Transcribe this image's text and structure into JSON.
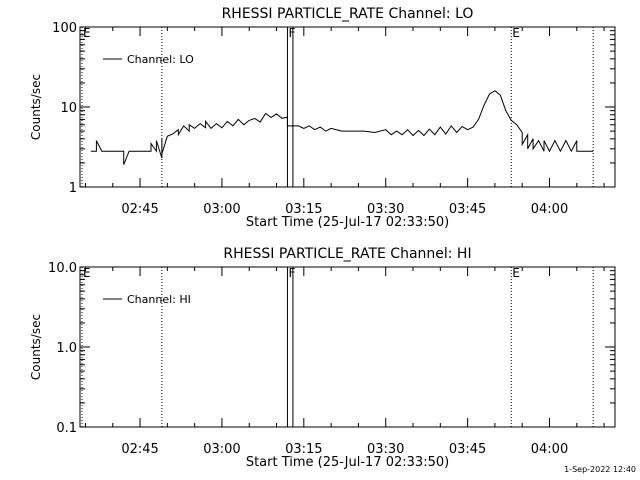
{
  "footer_timestamp": "1-Sep-2022 12:40",
  "chart_data": [
    {
      "type": "line",
      "title": "RHESSI PARTICLE_RATE Channel: LO",
      "xlabel": "Start Time (25-Jul-17 02:33:50)",
      "ylabel": "Counts/sec",
      "y_scale": "log",
      "ylim": [
        1,
        100
      ],
      "xlim": [
        "02:34",
        "04:12"
      ],
      "y_ticks": [
        {
          "value": 1,
          "label": "1"
        },
        {
          "value": 10,
          "label": "10"
        },
        {
          "value": 100,
          "label": "100"
        }
      ],
      "x_ticks": [
        "02:45",
        "03:00",
        "03:15",
        "03:30",
        "03:45",
        "04:00"
      ],
      "legend": {
        "label": "Channel: LO",
        "position": "top-left"
      },
      "event_lines": [
        {
          "time": "02:34",
          "label": "E",
          "style": "dotted"
        },
        {
          "time": "02:49",
          "label": "",
          "style": "dotted"
        },
        {
          "time": "03:12",
          "label": "F",
          "style": "solid"
        },
        {
          "time": "03:13",
          "label": "",
          "style": "solid"
        },
        {
          "time": "03:53",
          "label": "E",
          "style": "dotted"
        },
        {
          "time": "04:08",
          "label": "",
          "style": "dotted"
        }
      ],
      "series": [
        {
          "name": "Channel: LO",
          "points": [
            [
              "02:36",
              2.8
            ],
            [
              "02:37",
              2.8
            ],
            [
              "02:37",
              3.8
            ],
            [
              "02:38",
              2.8
            ],
            [
              "02:39",
              2.8
            ],
            [
              "02:40",
              2.8
            ],
            [
              "02:41",
              2.8
            ],
            [
              "02:42",
              2.8
            ],
            [
              "02:42",
              1.9
            ],
            [
              "02:43",
              2.8
            ],
            [
              "02:44",
              2.8
            ],
            [
              "02:45",
              2.8
            ],
            [
              "02:46",
              2.8
            ],
            [
              "02:47",
              2.8
            ],
            [
              "02:47",
              3.5
            ],
            [
              "02:48",
              2.8
            ],
            [
              "02:48",
              3.8
            ],
            [
              "02:49",
              2.3
            ],
            [
              "02:49",
              4.0
            ],
            [
              "02:49",
              2.6
            ],
            [
              "02:50",
              4.3
            ],
            [
              "02:51",
              4.6
            ],
            [
              "02:52",
              5.2
            ],
            [
              "02:52",
              4.5
            ],
            [
              "02:53",
              5.8
            ],
            [
              "02:54",
              5.0
            ],
            [
              "02:54",
              6.0
            ],
            [
              "02:55",
              5.4
            ],
            [
              "02:56",
              6.2
            ],
            [
              "02:57",
              5.5
            ],
            [
              "02:57",
              6.6
            ],
            [
              "02:58",
              5.4
            ],
            [
              "02:59",
              6.2
            ],
            [
              "03:00",
              5.5
            ],
            [
              "03:01",
              6.6
            ],
            [
              "03:02",
              5.8
            ],
            [
              "03:03",
              7.0
            ],
            [
              "03:04",
              6.0
            ],
            [
              "03:05",
              6.8
            ],
            [
              "03:06",
              7.2
            ],
            [
              "03:07",
              6.5
            ],
            [
              "03:08",
              8.3
            ],
            [
              "03:09",
              7.4
            ],
            [
              "03:10",
              8.2
            ],
            [
              "03:11",
              7.2
            ],
            [
              "03:12",
              7.5
            ],
            [
              "03:12",
              5.8
            ],
            [
              "03:14",
              5.8
            ],
            [
              "03:15",
              5.4
            ],
            [
              "03:16",
              5.8
            ],
            [
              "03:17",
              5.2
            ],
            [
              "03:18",
              5.6
            ],
            [
              "03:19",
              5.0
            ],
            [
              "03:20",
              5.4
            ],
            [
              "03:22",
              5.0
            ],
            [
              "03:24",
              5.0
            ],
            [
              "03:26",
              5.0
            ],
            [
              "03:28",
              4.8
            ],
            [
              "03:30",
              5.2
            ],
            [
              "03:31",
              4.5
            ],
            [
              "03:32",
              5.0
            ],
            [
              "03:33",
              4.5
            ],
            [
              "03:34",
              5.2
            ],
            [
              "03:35",
              4.4
            ],
            [
              "03:36",
              5.1
            ],
            [
              "03:37",
              4.4
            ],
            [
              "03:38",
              5.3
            ],
            [
              "03:39",
              4.5
            ],
            [
              "03:40",
              5.6
            ],
            [
              "03:41",
              4.6
            ],
            [
              "03:42",
              5.8
            ],
            [
              "03:43",
              4.8
            ],
            [
              "03:44",
              5.7
            ],
            [
              "03:45",
              5.2
            ],
            [
              "03:46",
              5.6
            ],
            [
              "03:47",
              7.0
            ],
            [
              "03:48",
              10.5
            ],
            [
              "03:49",
              14.5
            ],
            [
              "03:50",
              16.0
            ],
            [
              "03:51",
              14.0
            ],
            [
              "03:52",
              9.0
            ],
            [
              "03:53",
              6.8
            ],
            [
              "03:54",
              6.0
            ],
            [
              "03:55",
              4.8
            ],
            [
              "03:55",
              3.4
            ],
            [
              "03:56",
              4.5
            ],
            [
              "03:56",
              3.0
            ],
            [
              "03:57",
              4.0
            ],
            [
              "03:57",
              3.0
            ],
            [
              "03:58",
              3.8
            ],
            [
              "03:59",
              2.8
            ],
            [
              "03:59",
              3.8
            ],
            [
              "04:00",
              2.8
            ],
            [
              "04:01",
              3.8
            ],
            [
              "04:02",
              2.8
            ],
            [
              "04:03",
              3.8
            ],
            [
              "04:04",
              2.8
            ],
            [
              "04:05",
              3.8
            ],
            [
              "04:05",
              2.8
            ],
            [
              "04:08",
              2.8
            ]
          ]
        }
      ]
    },
    {
      "type": "line",
      "title": "RHESSI PARTICLE_RATE Channel: HI",
      "xlabel": "Start Time (25-Jul-17 02:33:50)",
      "ylabel": "Counts/sec",
      "y_scale": "log",
      "ylim": [
        0.1,
        10
      ],
      "xlim": [
        "02:34",
        "04:12"
      ],
      "y_ticks": [
        {
          "value": 0.1,
          "label": "0.1"
        },
        {
          "value": 1,
          "label": "1.0"
        },
        {
          "value": 10,
          "label": "10.0"
        }
      ],
      "x_ticks": [
        "02:45",
        "03:00",
        "03:15",
        "03:30",
        "03:45",
        "04:00"
      ],
      "legend": {
        "label": "Channel: HI",
        "position": "top-left"
      },
      "event_lines": [
        {
          "time": "02:34",
          "label": "E",
          "style": "dotted"
        },
        {
          "time": "02:49",
          "label": "",
          "style": "dotted"
        },
        {
          "time": "03:12",
          "label": "F",
          "style": "solid"
        },
        {
          "time": "03:13",
          "label": "",
          "style": "solid"
        },
        {
          "time": "03:53",
          "label": "E",
          "style": "dotted"
        },
        {
          "time": "04:08",
          "label": "",
          "style": "dotted"
        }
      ],
      "series": [
        {
          "name": "Channel: HI",
          "points": []
        }
      ]
    }
  ]
}
